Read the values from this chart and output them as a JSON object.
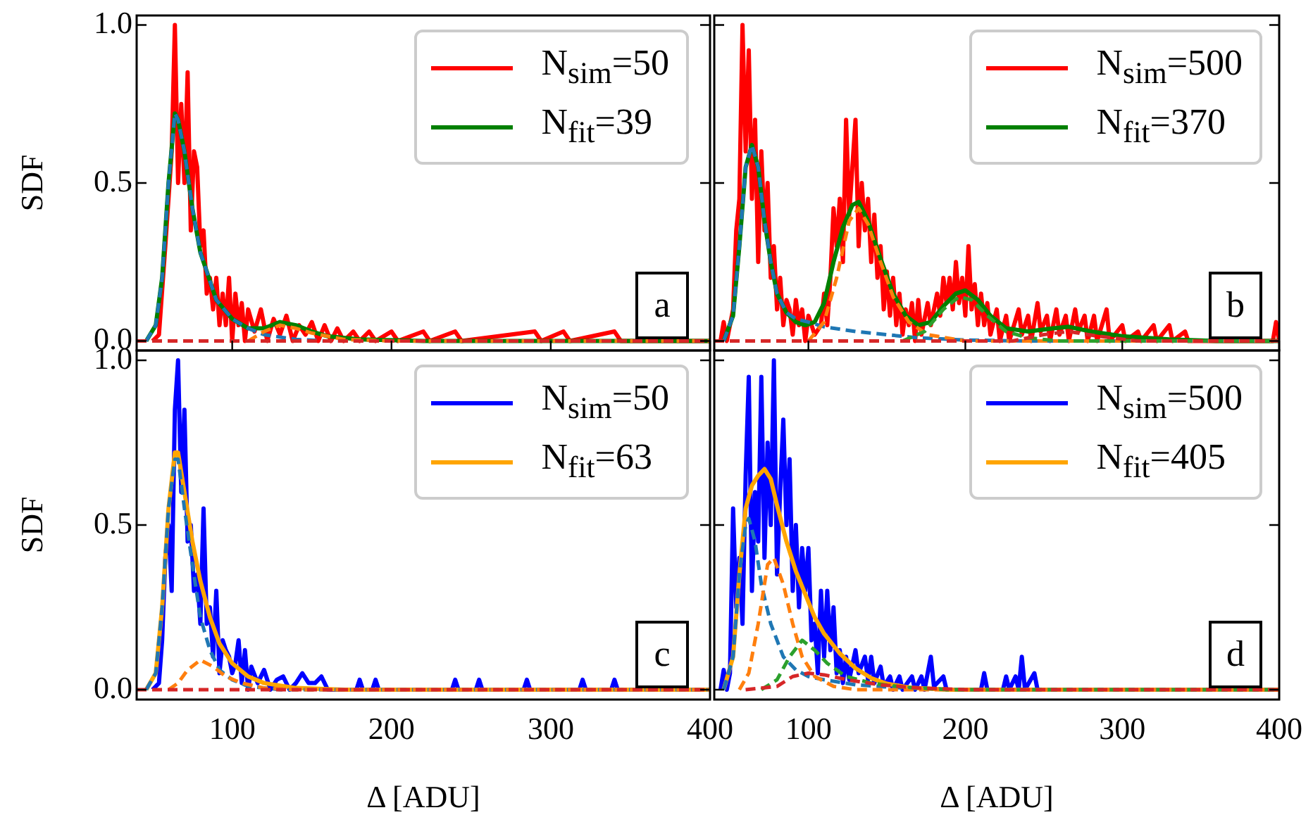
{
  "chart_data": [
    {
      "type": "line",
      "ylabel": "SDF",
      "xlim": [
        40,
        400
      ],
      "xticks": [
        100,
        200,
        300,
        400
      ],
      "ylim": [
        -0.03,
        1.03
      ],
      "yticks": [
        {
          "value": 0,
          "label": "0.0"
        },
        {
          "value": 0.5,
          "label": "0.5"
        },
        {
          "value": 1,
          "label": "1.0"
        }
      ],
      "tick_labels": "y",
      "legend": "top right",
      "marker": "none",
      "annotations": [
        "a"
      ],
      "series": [
        {
          "name": "N$_{sim}$=50",
          "color": "#ff0000",
          "x": [
            50,
            54,
            58,
            60,
            62,
            64,
            66,
            68,
            70,
            72,
            74,
            76,
            78,
            80,
            82,
            84,
            86,
            88,
            90,
            92,
            94,
            96,
            98,
            100,
            102,
            104,
            106,
            108,
            110,
            114,
            118,
            122,
            126,
            130,
            134,
            138,
            142,
            146,
            150,
            154,
            158,
            162,
            166,
            170,
            176,
            180,
            186,
            190,
            200,
            204,
            220,
            224,
            240,
            244,
            290,
            294,
            308,
            312,
            340,
            344,
            400
          ],
          "values": [
            0,
            0.02,
            0.3,
            0.45,
            0.6,
            1.0,
            0.5,
            0.75,
            0.5,
            0.85,
            0.35,
            0.6,
            0.55,
            0.3,
            0.35,
            0.15,
            0.2,
            0.1,
            0.2,
            0.05,
            0.15,
            0.05,
            0.2,
            0,
            0.15,
            0.05,
            0.12,
            0,
            0.1,
            0.03,
            0.1,
            0,
            0.07,
            0.02,
            0.08,
            0,
            0.05,
            0.02,
            0.06,
            0,
            0.05,
            0,
            0.04,
            0,
            0.03,
            0,
            0.03,
            0,
            0.03,
            0,
            0.03,
            0,
            0.03,
            0,
            0.03,
            0,
            0.03,
            0,
            0.03,
            0,
            0
          ]
        },
        {
          "name": "N$_{fit}$=39",
          "color": "#008000",
          "x": [
            46,
            52,
            56,
            60,
            64,
            66,
            70,
            75,
            80,
            90,
            100,
            110,
            120,
            130,
            140,
            150,
            160,
            180,
            220,
            400
          ],
          "values": [
            0,
            0.05,
            0.2,
            0.5,
            0.72,
            0.7,
            0.6,
            0.42,
            0.28,
            0.13,
            0.07,
            0.04,
            0.04,
            0.06,
            0.05,
            0.03,
            0.015,
            0.005,
            0,
            0
          ]
        },
        {
          "color": "#1f77b4",
          "line_style": "dashed",
          "x": [
            46,
            52,
            56,
            60,
            64,
            66,
            70,
            75,
            80,
            90,
            100,
            110,
            120,
            140,
            160,
            400
          ],
          "values": [
            0,
            0.05,
            0.2,
            0.5,
            0.72,
            0.7,
            0.6,
            0.42,
            0.28,
            0.13,
            0.07,
            0.04,
            0.02,
            0.005,
            0,
            0
          ]
        },
        {
          "color": "#ff7f0e",
          "line_style": "dashed",
          "x": [
            110,
            120,
            130,
            140,
            150,
            170,
            200,
            400
          ],
          "values": [
            0,
            0.03,
            0.05,
            0.04,
            0.025,
            0.005,
            0,
            0
          ]
        },
        {
          "color": "#d62728",
          "line_style": "dashed",
          "x": [
            40,
            400
          ],
          "values": [
            0,
            0
          ]
        }
      ]
    },
    {
      "type": "line",
      "xlim": [
        40,
        400
      ],
      "xticks": [
        100,
        200,
        300,
        400
      ],
      "ylim": [
        -0.03,
        1.03
      ],
      "yticks": [
        0,
        0.5,
        1
      ],
      "tick_labels": false,
      "legend": "top right",
      "marker": "none",
      "annotations": [
        "b"
      ],
      "series": [
        {
          "name": "N$_{sim}$=500",
          "color": "#ff0000",
          "x": [
            44,
            46,
            48,
            52,
            54,
            56,
            58,
            60,
            62,
            64,
            66,
            68,
            70,
            72,
            74,
            76,
            78,
            80,
            82,
            84,
            86,
            88,
            90,
            92,
            94,
            96,
            98,
            100,
            104,
            108,
            110,
            112,
            114,
            116,
            118,
            120,
            122,
            124,
            126,
            128,
            130,
            132,
            134,
            136,
            138,
            140,
            142,
            144,
            146,
            148,
            150,
            152,
            154,
            156,
            158,
            160,
            162,
            164,
            166,
            168,
            170,
            172,
            176,
            178,
            182,
            184,
            186,
            188,
            190,
            192,
            194,
            196,
            198,
            200,
            202,
            204,
            206,
            208,
            210,
            212,
            214,
            216,
            220,
            222,
            226,
            228,
            234,
            236,
            240,
            242,
            246,
            248,
            252,
            254,
            258,
            260,
            264,
            266,
            270,
            272,
            276,
            278,
            282,
            284,
            290,
            292,
            300,
            302,
            310,
            312,
            320,
            322,
            330,
            332,
            340,
            342,
            396,
            398,
            400
          ],
          "values": [
            0,
            0.06,
            0,
            0.1,
            0.35,
            0.45,
            1.0,
            0.6,
            0.92,
            0.45,
            0.7,
            0.25,
            0.6,
            0.35,
            0.5,
            0.2,
            0.3,
            0.1,
            0.2,
            0.05,
            0.13,
            0.1,
            0.02,
            0.13,
            0.05,
            0.1,
            0,
            0.08,
            0.02,
            0.05,
            0.15,
            0.05,
            0.2,
            0.42,
            0.3,
            0.45,
            0.25,
            0.7,
            0.4,
            0.55,
            0.7,
            0.3,
            0.5,
            0.35,
            0.45,
            0.25,
            0.4,
            0.2,
            0.3,
            0.1,
            0.22,
            0.08,
            0.2,
            0.05,
            0.15,
            0.02,
            0.1,
            0.05,
            0.12,
            0,
            0.13,
            0.02,
            0.12,
            0.05,
            0.15,
            0.08,
            0.2,
            0.12,
            0.2,
            0.1,
            0.25,
            0.12,
            0.2,
            0.08,
            0.3,
            0.1,
            0.18,
            0.05,
            0.15,
            0.05,
            0.12,
            0.02,
            0.1,
            0,
            0.08,
            0,
            0.1,
            0.02,
            0.08,
            0,
            0.12,
            0.03,
            0.08,
            0,
            0.1,
            0.02,
            0.08,
            0,
            0.1,
            0.03,
            0.08,
            0,
            0.08,
            0,
            0.1,
            0,
            0.05,
            0,
            0.03,
            0,
            0.05,
            0,
            0.05,
            0,
            0.03,
            0,
            0,
            0.06,
            0
          ]
        },
        {
          "name": "N$_{fit}$=370",
          "color": "#008000",
          "x": [
            46,
            52,
            56,
            60,
            64,
            68,
            72,
            76,
            80,
            86,
            92,
            98,
            104,
            110,
            116,
            122,
            128,
            132,
            138,
            146,
            154,
            162,
            170,
            178,
            186,
            194,
            200,
            208,
            216,
            226,
            240,
            256,
            266,
            280,
            300,
            330,
            360,
            400
          ],
          "values": [
            0,
            0.08,
            0.3,
            0.55,
            0.62,
            0.55,
            0.38,
            0.25,
            0.15,
            0.09,
            0.06,
            0.05,
            0.06,
            0.12,
            0.25,
            0.36,
            0.43,
            0.44,
            0.38,
            0.26,
            0.15,
            0.08,
            0.05,
            0.06,
            0.11,
            0.15,
            0.16,
            0.13,
            0.08,
            0.04,
            0.03,
            0.04,
            0.045,
            0.03,
            0.015,
            0.005,
            0,
            0
          ]
        },
        {
          "color": "#1f77b4",
          "line_style": "dashed",
          "x": [
            46,
            52,
            56,
            60,
            64,
            68,
            72,
            76,
            80,
            86,
            92,
            100,
            110,
            130,
            150,
            170,
            200,
            240,
            400
          ],
          "values": [
            0,
            0.08,
            0.3,
            0.55,
            0.62,
            0.55,
            0.38,
            0.25,
            0.15,
            0.09,
            0.07,
            0.06,
            0.045,
            0.03,
            0.02,
            0.01,
            0.003,
            0,
            0
          ]
        },
        {
          "color": "#ff7f0e",
          "line_style": "dashed",
          "x": [
            100,
            110,
            118,
            126,
            132,
            138,
            146,
            154,
            164,
            176,
            200,
            400
          ],
          "values": [
            0,
            0.06,
            0.2,
            0.38,
            0.42,
            0.37,
            0.25,
            0.14,
            0.06,
            0.02,
            0,
            0
          ]
        },
        {
          "color": "#2ca02c",
          "line_style": "dashed",
          "x": [
            160,
            174,
            186,
            196,
            204,
            214,
            226,
            240,
            260,
            400
          ],
          "values": [
            0,
            0.03,
            0.1,
            0.14,
            0.13,
            0.08,
            0.03,
            0.01,
            0,
            0
          ]
        },
        {
          "color": "#d62728",
          "line_style": "dashed",
          "x": [
            40,
            230,
            250,
            266,
            285,
            310,
            400
          ],
          "values": [
            0,
            0,
            0.02,
            0.03,
            0.015,
            0,
            0
          ]
        }
      ]
    },
    {
      "type": "line",
      "ylabel": "SDF",
      "xlabel": "Δ [ADU]",
      "xlim": [
        40,
        400
      ],
      "xticks": [
        100,
        200,
        300,
        400
      ],
      "ylim": [
        -0.03,
        1.03
      ],
      "yticks": [
        {
          "value": 0,
          "label": "0.0"
        },
        {
          "value": 0.5,
          "label": "0.5"
        },
        {
          "value": 1,
          "label": "1.0"
        }
      ],
      "legend": "top right",
      "marker": "none",
      "annotations": [
        "c"
      ],
      "series": [
        {
          "name": "N$_{sim}$=50",
          "color": "#0000ff",
          "x": [
            50,
            54,
            56,
            58,
            60,
            62,
            64,
            66,
            68,
            70,
            72,
            74,
            76,
            78,
            80,
            82,
            84,
            86,
            88,
            90,
            92,
            94,
            96,
            98,
            100,
            102,
            104,
            106,
            108,
            110,
            112,
            116,
            120,
            124,
            128,
            132,
            136,
            140,
            144,
            148,
            152,
            156,
            160,
            178,
            180,
            182,
            188,
            190,
            192,
            238,
            240,
            242,
            253,
            255,
            257,
            283,
            285,
            287,
            318,
            320,
            322,
            338,
            340,
            342,
            400
          ],
          "values": [
            0,
            0.02,
            0.15,
            0.4,
            0.5,
            0.3,
            0.85,
            1.0,
            0.6,
            0.85,
            0.45,
            0.5,
            0.3,
            0.35,
            0.2,
            0.55,
            0.2,
            0.25,
            0.1,
            0.3,
            0.05,
            0.15,
            0.12,
            0.1,
            0.05,
            0.08,
            0.15,
            0.02,
            0.12,
            0,
            0.07,
            0.02,
            0.06,
            0,
            0.03,
            0.04,
            0,
            0.02,
            0.05,
            0.02,
            0.02,
            0.04,
            0,
            0,
            0.03,
            0,
            0,
            0.03,
            0,
            0,
            0.03,
            0,
            0,
            0.03,
            0,
            0,
            0.03,
            0,
            0,
            0.03,
            0,
            0,
            0.03,
            0,
            0
          ]
        },
        {
          "name": "N$_{fit}$=63",
          "color": "#ffa500",
          "x": [
            46,
            52,
            56,
            60,
            64,
            66,
            70,
            75,
            80,
            86,
            92,
            100,
            110,
            120,
            140,
            170,
            400
          ],
          "values": [
            0,
            0.05,
            0.25,
            0.55,
            0.72,
            0.72,
            0.6,
            0.45,
            0.33,
            0.22,
            0.14,
            0.08,
            0.04,
            0.02,
            0.005,
            0,
            0
          ]
        },
        {
          "color": "#1f77b4",
          "line_style": "dashed",
          "x": [
            46,
            52,
            56,
            60,
            64,
            66,
            70,
            75,
            80,
            86,
            92,
            100,
            110,
            130,
            400
          ],
          "values": [
            0,
            0.05,
            0.25,
            0.55,
            0.7,
            0.7,
            0.55,
            0.38,
            0.22,
            0.12,
            0.06,
            0.03,
            0.01,
            0,
            0
          ]
        },
        {
          "color": "#ff7f0e",
          "line_style": "dashed",
          "x": [
            60,
            66,
            72,
            80,
            88,
            96,
            106,
            120,
            140,
            400
          ],
          "values": [
            0,
            0.02,
            0.06,
            0.09,
            0.07,
            0.04,
            0.02,
            0.005,
            0,
            0
          ]
        },
        {
          "color": "#d62728",
          "line_style": "dashed",
          "x": [
            40,
            400
          ],
          "values": [
            0,
            0
          ]
        }
      ]
    },
    {
      "type": "line",
      "xlabel": "Δ [ADU]",
      "xlim": [
        40,
        400
      ],
      "xticks": [
        100,
        200,
        300,
        400
      ],
      "ylim": [
        -0.03,
        1.03
      ],
      "yticks": [
        0,
        0.5,
        1
      ],
      "tick_labels": "x",
      "legend": "top right",
      "marker": "none",
      "annotations": [
        "d"
      ],
      "series": [
        {
          "name": "N$_{sim}$=500",
          "color": "#0000ff",
          "x": [
            44,
            46,
            48,
            50,
            52,
            54,
            56,
            58,
            60,
            62,
            64,
            66,
            68,
            70,
            72,
            74,
            76,
            78,
            80,
            82,
            84,
            86,
            88,
            90,
            92,
            94,
            96,
            98,
            100,
            102,
            104,
            106,
            108,
            110,
            112,
            114,
            116,
            118,
            120,
            122,
            124,
            126,
            130,
            132,
            136,
            138,
            140,
            142,
            146,
            148,
            152,
            154,
            158,
            160,
            166,
            168,
            172,
            174,
            178,
            180,
            186,
            188,
            210,
            212,
            214,
            224,
            226,
            228,
            232,
            234,
            236,
            238,
            244,
            246,
            300,
            400
          ],
          "values": [
            0,
            0.06,
            0,
            0.05,
            0.55,
            0.25,
            0.4,
            0.2,
            0.65,
            0.95,
            0.3,
            0.6,
            0.45,
            0.95,
            0.4,
            0.75,
            0.5,
            1.0,
            0.35,
            0.6,
            0.82,
            0.5,
            0.7,
            0.3,
            0.5,
            0.25,
            0.43,
            0.3,
            0.43,
            0.15,
            0.2,
            0.05,
            0.3,
            0.1,
            0.3,
            0.12,
            0.25,
            0.05,
            0.12,
            0.02,
            0.1,
            0.03,
            0.12,
            0.05,
            0.1,
            0.03,
            0.1,
            0.02,
            0.07,
            0.01,
            0.04,
            0,
            0.04,
            0,
            0.04,
            0,
            0.04,
            0,
            0.1,
            0.01,
            0.04,
            0,
            0,
            0.05,
            0,
            0,
            0.04,
            0,
            0.04,
            0,
            0.1,
            0,
            0.05,
            0,
            0,
            0
          ]
        },
        {
          "name": "N$_{fit}$=405",
          "color": "#ffa500",
          "x": [
            46,
            52,
            56,
            60,
            64,
            68,
            72,
            76,
            80,
            86,
            92,
            98,
            104,
            110,
            120,
            130,
            140,
            150,
            165,
            190,
            400
          ],
          "values": [
            0,
            0.1,
            0.35,
            0.55,
            0.62,
            0.65,
            0.67,
            0.64,
            0.56,
            0.45,
            0.36,
            0.29,
            0.22,
            0.17,
            0.11,
            0.065,
            0.035,
            0.018,
            0.006,
            0,
            0
          ]
        },
        {
          "color": "#1f77b4",
          "line_style": "dashed",
          "x": [
            46,
            52,
            56,
            60,
            62,
            66,
            70,
            76,
            84,
            92,
            100,
            110,
            130,
            160,
            200,
            400
          ],
          "values": [
            0,
            0.1,
            0.35,
            0.5,
            0.52,
            0.45,
            0.32,
            0.2,
            0.1,
            0.06,
            0.04,
            0.03,
            0.015,
            0.005,
            0,
            0
          ]
        },
        {
          "color": "#ff7f0e",
          "line_style": "dashed",
          "x": [
            56,
            62,
            68,
            74,
            78,
            84,
            90,
            96,
            104,
            116,
            130,
            400
          ],
          "values": [
            0,
            0.05,
            0.2,
            0.38,
            0.4,
            0.32,
            0.2,
            0.1,
            0.04,
            0.01,
            0,
            0
          ]
        },
        {
          "color": "#2ca02c",
          "line_style": "dashed",
          "x": [
            70,
            80,
            88,
            96,
            104,
            112,
            124,
            140,
            160,
            190,
            400
          ],
          "values": [
            0,
            0.03,
            0.1,
            0.15,
            0.12,
            0.08,
            0.04,
            0.02,
            0.008,
            0,
            0
          ]
        },
        {
          "color": "#d62728",
          "line_style": "dashed",
          "x": [
            60,
            80,
            90,
            100,
            110,
            125,
            145,
            170,
            200,
            400
          ],
          "values": [
            0,
            0.01,
            0.04,
            0.05,
            0.045,
            0.03,
            0.015,
            0.005,
            0,
            0
          ]
        }
      ]
    }
  ]
}
